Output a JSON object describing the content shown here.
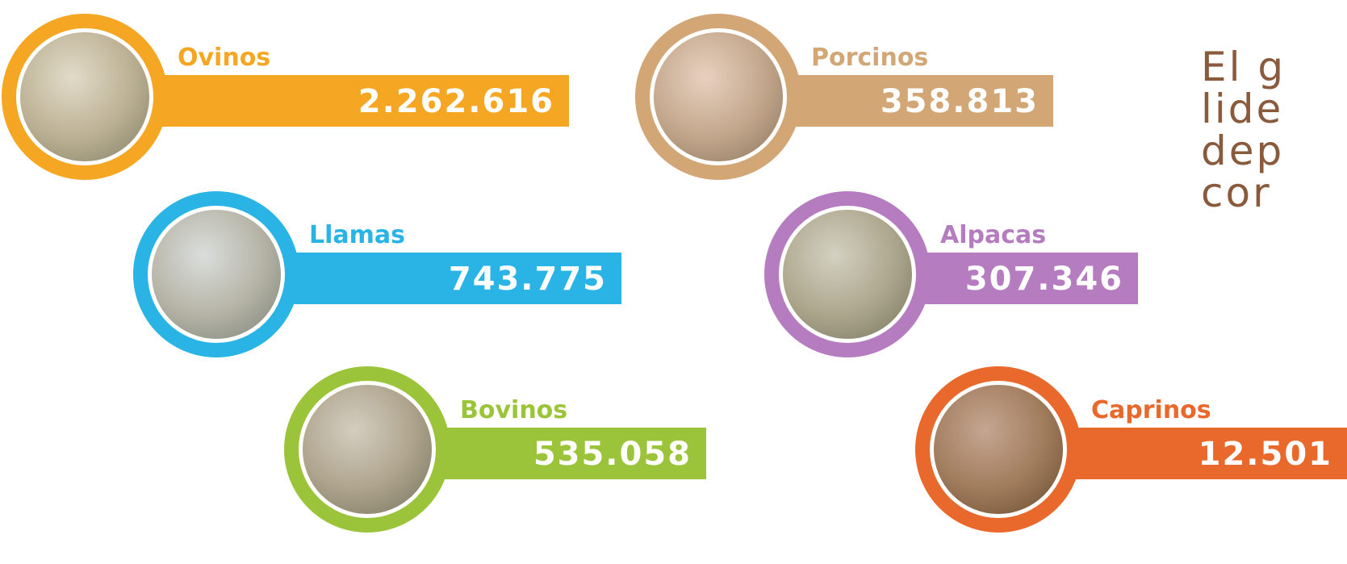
{
  "items": [
    {
      "label": "Ovinos",
      "value": "2.262.616"
    },
    {
      "label": "Porcinos",
      "value": "358.813"
    },
    {
      "label": "Llamas",
      "value": "743.775"
    },
    {
      "label": "Alpacas",
      "value": "307.346"
    },
    {
      "label": "Bovinos",
      "value": "535.058"
    },
    {
      "label": "Caprinos",
      "value": "12.501"
    }
  ],
  "side_text": [
    "El g",
    "lide",
    "dep",
    "cor"
  ]
}
